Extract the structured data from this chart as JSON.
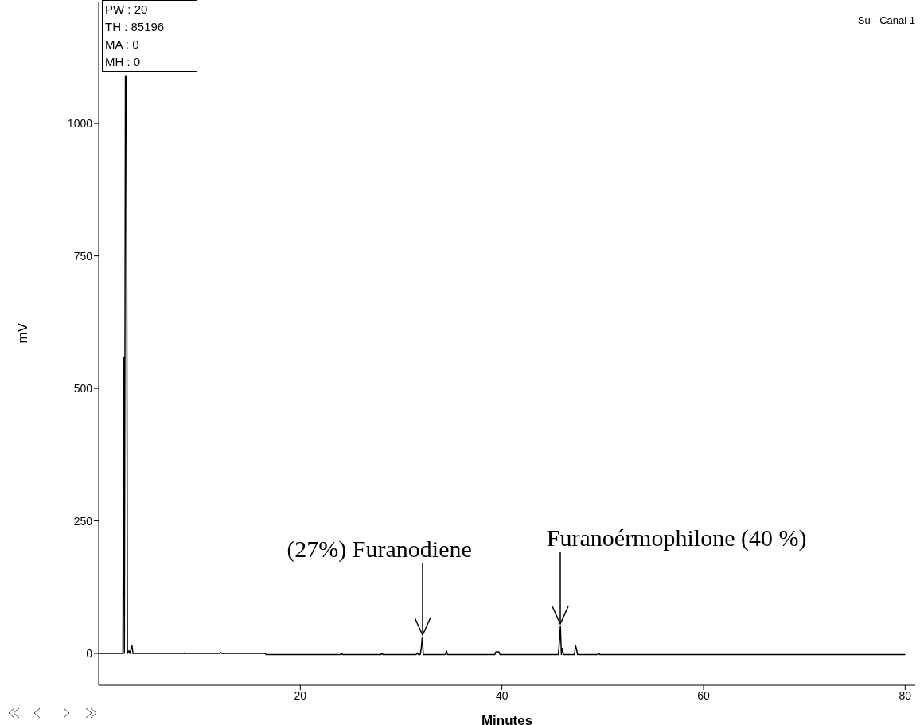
{
  "chart_data": {
    "type": "line",
    "xlabel": "Minutes",
    "ylabel": "mV",
    "x": [
      0,
      2.4,
      2.5,
      2.55,
      2.65,
      2.75,
      2.85,
      3.0,
      3.1,
      3.3,
      3.4,
      4,
      8.5,
      8.55,
      8.6,
      12,
      12.1,
      12.2,
      16.5,
      16.6,
      24,
      24.1,
      24.2,
      28,
      28.1,
      28.2,
      31.5,
      31.6,
      31.7,
      31.9,
      32.0,
      32.1,
      32.2,
      34.4,
      34.5,
      34.6,
      39.3,
      39.4,
      39.7,
      39.8,
      45.6,
      45.7,
      45.8,
      45.9,
      46.0,
      46.1,
      47.2,
      47.3,
      47.4,
      47.5,
      49.5,
      49.6,
      49.7,
      80
    ],
    "series": [
      {
        "color": "#000000",
        "values": [
          0,
          0,
          558,
          0,
          1090,
          1090,
          0,
          5,
          0,
          15,
          0,
          0,
          0,
          2,
          0,
          0,
          2,
          0,
          0,
          -2,
          -2,
          0,
          -2,
          -2,
          0,
          -2,
          -2,
          1,
          -2,
          -2,
          10,
          31,
          -2,
          -2,
          5,
          -2,
          -2,
          3,
          3,
          -2,
          -2,
          20,
          52,
          -2,
          10,
          -2,
          -2,
          15,
          8,
          -2,
          -2,
          0,
          -2,
          -2
        ]
      }
    ],
    "xlim": [
      0,
      81
    ],
    "xticks": [
      20,
      40,
      60,
      80
    ],
    "ylim": [
      -60,
      1230
    ],
    "yticks": [
      0,
      250,
      500,
      750,
      1000
    ],
    "grid": false,
    "legend": false,
    "marker": "none",
    "line_style": "solid",
    "annotations": [
      "PW : 20",
      "TH : 85196",
      "MA : 0",
      "MH : 0",
      "Su - Canal 1",
      {
        "text": "(27%) Furanodiene",
        "x": 32.1,
        "y": 31
      },
      {
        "text": "Furanoérmophilone (40 %)",
        "x": 45.8,
        "y": 52
      }
    ]
  }
}
